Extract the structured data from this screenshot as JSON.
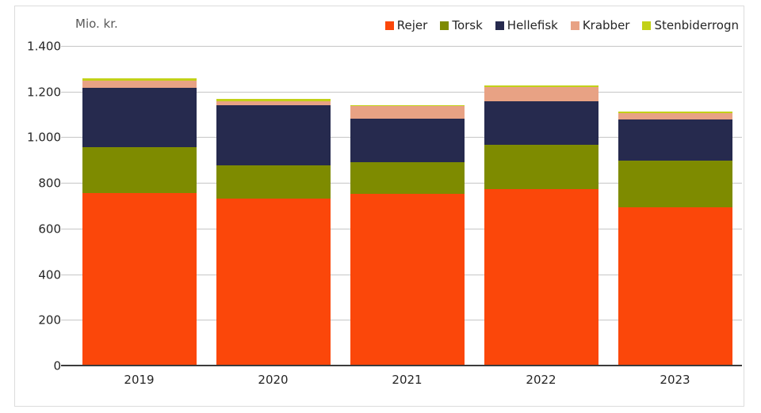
{
  "chart_data": {
    "type": "bar",
    "stacked": true,
    "unit_label": "Mio. kr.",
    "categories": [
      "2019",
      "2020",
      "2021",
      "2022",
      "2023"
    ],
    "series": [
      {
        "name": "Rejer",
        "color": "#fb470a",
        "values": [
          760,
          735,
          755,
          775,
          695
        ]
      },
      {
        "name": "Torsk",
        "color": "#7e8b00",
        "values": [
          200,
          145,
          140,
          195,
          205
        ]
      },
      {
        "name": "Hellefisk",
        "color": "#262a4e",
        "values": [
          260,
          265,
          190,
          190,
          180
        ]
      },
      {
        "name": "Krabber",
        "color": "#e8a284",
        "values": [
          30,
          15,
          55,
          65,
          30
        ]
      },
      {
        "name": "Stenbiderrogn",
        "color": "#c2d118",
        "values": [
          10,
          10,
          5,
          5,
          5
        ]
      }
    ],
    "totals": [
      1260,
      1170,
      1145,
      1230,
      1115
    ],
    "ylim": [
      0,
      1400
    ],
    "yticks": [
      0,
      200,
      400,
      600,
      800,
      1000,
      1200,
      1400
    ],
    "ytick_labels": [
      "0",
      "200",
      "400",
      "600",
      "800",
      "1.000",
      "1.200",
      "1.400"
    ],
    "grid": true,
    "legend_position": "top-right"
  },
  "colors": {
    "gridline": "#c6c6c6",
    "baseline": "#3c3c3c",
    "axis_text": "#262626",
    "unit_text": "#595959",
    "frame_border": "#dcdcdc",
    "background": "#ffffff"
  }
}
